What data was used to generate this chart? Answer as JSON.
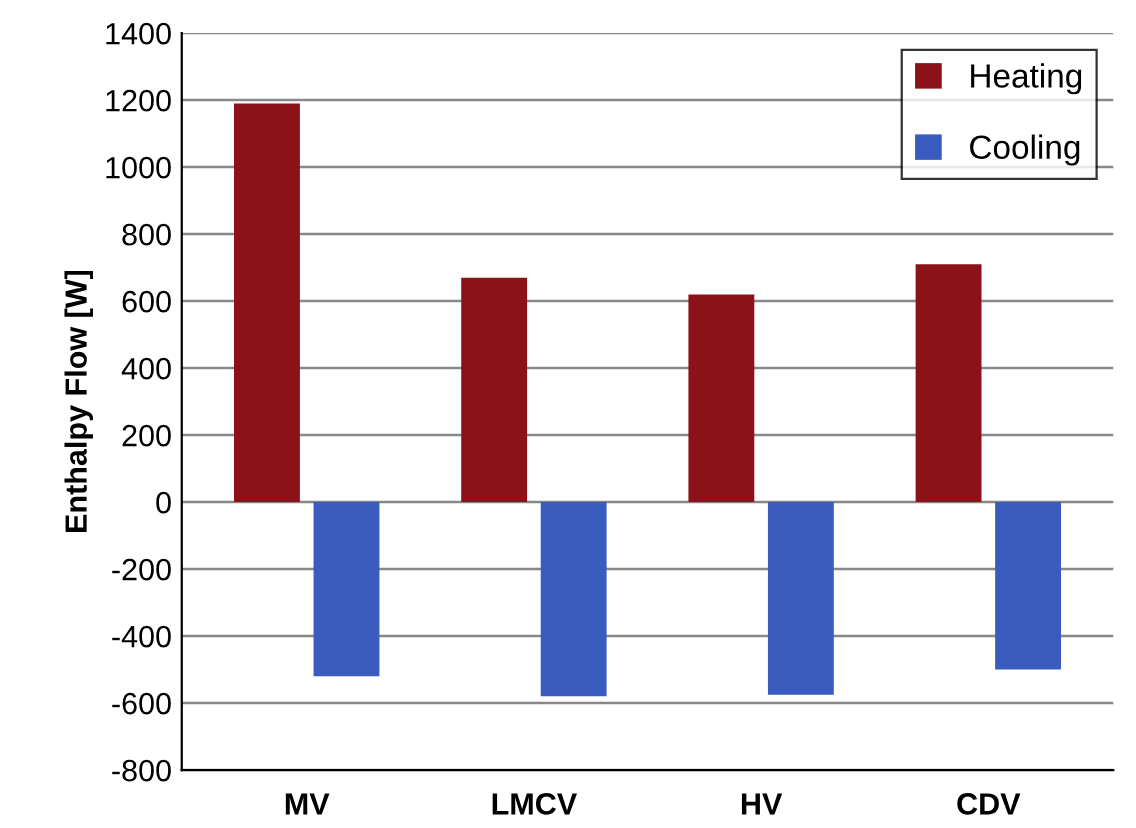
{
  "chart_data": {
    "type": "bar",
    "ylabel": "Enthalpy Flow [W]",
    "categories": [
      "MV",
      "LMCV",
      "HV",
      "CDV"
    ],
    "series": [
      {
        "name": "Heating",
        "color": "#8b1218",
        "values": [
          1190,
          670,
          620,
          710
        ]
      },
      {
        "name": "Cooling",
        "color": "#3a5cbe",
        "values": [
          -520,
          -580,
          -575,
          -500
        ]
      }
    ],
    "ylim": [
      -800,
      1400
    ],
    "yticks": [
      -800,
      -600,
      -400,
      -200,
      0,
      200,
      400,
      600,
      800,
      1000,
      1200,
      1400
    ],
    "grid": "y",
    "legend": "top right"
  }
}
